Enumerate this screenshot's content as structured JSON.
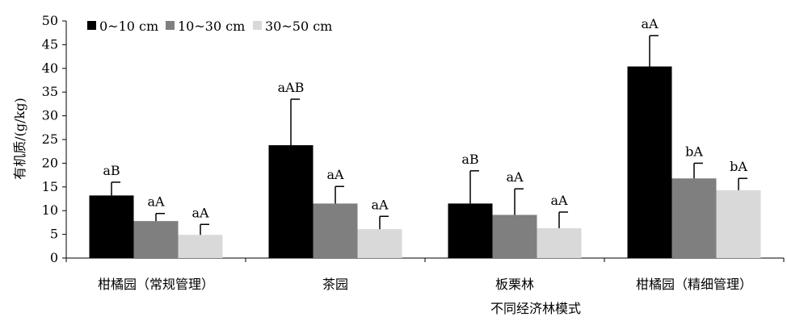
{
  "chart_data": {
    "type": "bar",
    "title": "",
    "xlabel": "不同经济林模式",
    "ylabel": "有机质/(g/kg)",
    "ylim": [
      0,
      50
    ],
    "yticks": [
      0,
      5,
      10,
      15,
      20,
      25,
      30,
      35,
      40,
      45,
      50
    ],
    "categories": [
      "柑橘园（常规管理）",
      "茶园",
      "板栗林",
      "柑橘园（精细管理）"
    ],
    "legend_position": "top-left",
    "grid": false,
    "error_bars": "upper",
    "series": [
      {
        "name": "0~10 cm",
        "color": "#000000",
        "values": [
          13.2,
          23.8,
          11.5,
          40.4
        ],
        "errors": [
          2.8,
          9.7,
          6.9,
          6.5
        ],
        "labels": [
          "aB",
          "aAB",
          "aB",
          "aA"
        ]
      },
      {
        "name": "10~30 cm",
        "color": "#7f7f7f",
        "values": [
          7.8,
          11.5,
          9.1,
          16.8
        ],
        "errors": [
          1.6,
          3.6,
          5.5,
          3.2
        ],
        "labels": [
          "aA",
          "aA",
          "aA",
          "bA"
        ]
      },
      {
        "name": "30~50 cm",
        "color": "#d9d9d9",
        "values": [
          4.9,
          6.1,
          6.3,
          14.3
        ],
        "errors": [
          2.2,
          2.7,
          3.4,
          2.5
        ],
        "labels": [
          "aA",
          "aA",
          "aA",
          "bA"
        ]
      }
    ]
  }
}
